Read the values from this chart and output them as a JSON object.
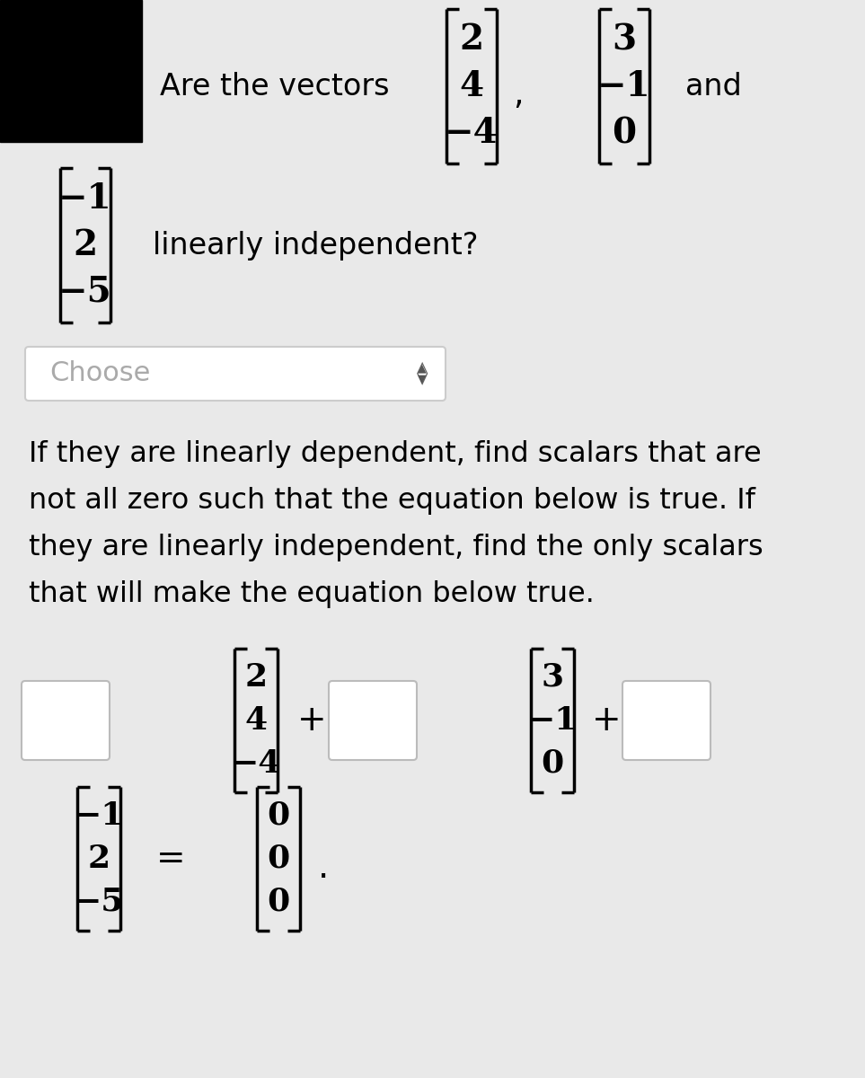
{
  "bg_color": "#e9e9e9",
  "text_color": "#000000",
  "vec1": [
    "2",
    "4",
    "−4"
  ],
  "vec2": [
    "3",
    "−1",
    "0"
  ],
  "vec3": [
    "−1",
    "2",
    "−5"
  ],
  "eq_rhs": [
    "0",
    "0",
    "0"
  ],
  "line1_text": "Are the vectors",
  "and_text": "and",
  "linearly_text": "linearly independent?",
  "choose_text": "Choose",
  "paragraph_lines": [
    "If they are linearly dependent, find scalars that are",
    "not all zero such that the equation below is true. If",
    "they are linearly independent, find the only scalars",
    "that will make the equation below true."
  ]
}
